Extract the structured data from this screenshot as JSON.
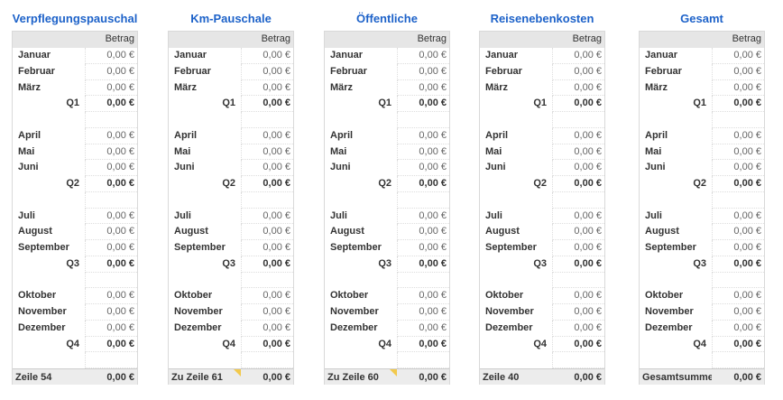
{
  "tables": [
    {
      "title": "Verpflegungspauschal",
      "header": "Betrag",
      "quarters": [
        {
          "months": [
            {
              "label": "Januar",
              "value": "0,00 €"
            },
            {
              "label": "Februar",
              "value": "0,00 €"
            },
            {
              "label": "März",
              "value": "0,00 €"
            }
          ],
          "total": {
            "label": "Q1",
            "value": "0,00 €"
          }
        },
        {
          "months": [
            {
              "label": "April",
              "value": "0,00 €"
            },
            {
              "label": "Mai",
              "value": "0,00 €"
            },
            {
              "label": "Juni",
              "value": "0,00 €"
            }
          ],
          "total": {
            "label": "Q2",
            "value": "0,00 €"
          }
        },
        {
          "months": [
            {
              "label": "Juli",
              "value": "0,00 €"
            },
            {
              "label": "August",
              "value": "0,00 €"
            },
            {
              "label": "September",
              "value": "0,00 €"
            }
          ],
          "total": {
            "label": "Q3",
            "value": "0,00 €"
          }
        },
        {
          "months": [
            {
              "label": "Oktober",
              "value": "0,00 €"
            },
            {
              "label": "November",
              "value": "0,00 €"
            },
            {
              "label": "Dezember",
              "value": "0,00 €"
            }
          ],
          "total": {
            "label": "Q4",
            "value": "0,00 €"
          }
        }
      ],
      "footer": {
        "label": "Zeile 54",
        "value": "0,00 €",
        "comment": false
      }
    },
    {
      "title": "Km-Pauschale",
      "header": "Betrag",
      "quarters": [
        {
          "months": [
            {
              "label": "Januar",
              "value": "0,00 €"
            },
            {
              "label": "Februar",
              "value": "0,00 €"
            },
            {
              "label": "März",
              "value": "0,00 €"
            }
          ],
          "total": {
            "label": "Q1",
            "value": "0,00 €"
          }
        },
        {
          "months": [
            {
              "label": "April",
              "value": "0,00 €"
            },
            {
              "label": "Mai",
              "value": "0,00 €"
            },
            {
              "label": "Juni",
              "value": "0,00 €"
            }
          ],
          "total": {
            "label": "Q2",
            "value": "0,00 €"
          }
        },
        {
          "months": [
            {
              "label": "Juli",
              "value": "0,00 €"
            },
            {
              "label": "August",
              "value": "0,00 €"
            },
            {
              "label": "September",
              "value": "0,00 €"
            }
          ],
          "total": {
            "label": "Q3",
            "value": "0,00 €"
          }
        },
        {
          "months": [
            {
              "label": "Oktober",
              "value": "0,00 €"
            },
            {
              "label": "November",
              "value": "0,00 €"
            },
            {
              "label": "Dezember",
              "value": "0,00 €"
            }
          ],
          "total": {
            "label": "Q4",
            "value": "0,00 €"
          }
        }
      ],
      "footer": {
        "label": "Zu Zeile 61",
        "value": "0,00 €",
        "comment": true
      }
    },
    {
      "title": "Öffentliche",
      "header": "Betrag",
      "quarters": [
        {
          "months": [
            {
              "label": "Januar",
              "value": "0,00 €"
            },
            {
              "label": "Februar",
              "value": "0,00 €"
            },
            {
              "label": "März",
              "value": "0,00 €"
            }
          ],
          "total": {
            "label": "Q1",
            "value": "0,00 €"
          }
        },
        {
          "months": [
            {
              "label": "April",
              "value": "0,00 €"
            },
            {
              "label": "Mai",
              "value": "0,00 €"
            },
            {
              "label": "Juni",
              "value": "0,00 €"
            }
          ],
          "total": {
            "label": "Q2",
            "value": "0,00 €"
          }
        },
        {
          "months": [
            {
              "label": "Juli",
              "value": "0,00 €"
            },
            {
              "label": "August",
              "value": "0,00 €"
            },
            {
              "label": "September",
              "value": "0,00 €"
            }
          ],
          "total": {
            "label": "Q3",
            "value": "0,00 €"
          }
        },
        {
          "months": [
            {
              "label": "Oktober",
              "value": "0,00 €"
            },
            {
              "label": "November",
              "value": "0,00 €"
            },
            {
              "label": "Dezember",
              "value": "0,00 €"
            }
          ],
          "total": {
            "label": "Q4",
            "value": "0,00 €"
          }
        }
      ],
      "footer": {
        "label": "Zu Zeile 60",
        "value": "0,00 €",
        "comment": true
      }
    },
    {
      "title": "Reisenebenkosten",
      "header": "Betrag",
      "quarters": [
        {
          "months": [
            {
              "label": "Januar",
              "value": "0,00 €"
            },
            {
              "label": "Februar",
              "value": "0,00 €"
            },
            {
              "label": "März",
              "value": "0,00 €"
            }
          ],
          "total": {
            "label": "Q1",
            "value": "0,00 €"
          }
        },
        {
          "months": [
            {
              "label": "April",
              "value": "0,00 €"
            },
            {
              "label": "Mai",
              "value": "0,00 €"
            },
            {
              "label": "Juni",
              "value": "0,00 €"
            }
          ],
          "total": {
            "label": "Q2",
            "value": "0,00 €"
          }
        },
        {
          "months": [
            {
              "label": "Juli",
              "value": "0,00 €"
            },
            {
              "label": "August",
              "value": "0,00 €"
            },
            {
              "label": "September",
              "value": "0,00 €"
            }
          ],
          "total": {
            "label": "Q3",
            "value": "0,00 €"
          }
        },
        {
          "months": [
            {
              "label": "Oktober",
              "value": "0,00 €"
            },
            {
              "label": "November",
              "value": "0,00 €"
            },
            {
              "label": "Dezember",
              "value": "0,00 €"
            }
          ],
          "total": {
            "label": "Q4",
            "value": "0,00 €"
          }
        }
      ],
      "footer": {
        "label": "Zeile 40",
        "value": "0,00 €",
        "comment": false
      }
    },
    {
      "title": "Gesamt",
      "header": "Betrag",
      "quarters": [
        {
          "months": [
            {
              "label": "Januar",
              "value": "0,00 €"
            },
            {
              "label": "Februar",
              "value": "0,00 €"
            },
            {
              "label": "März",
              "value": "0,00 €"
            }
          ],
          "total": {
            "label": "Q1",
            "value": "0,00 €"
          }
        },
        {
          "months": [
            {
              "label": "April",
              "value": "0,00 €"
            },
            {
              "label": "Mai",
              "value": "0,00 €"
            },
            {
              "label": "Juni",
              "value": "0,00 €"
            }
          ],
          "total": {
            "label": "Q2",
            "value": "0,00 €"
          }
        },
        {
          "months": [
            {
              "label": "Juli",
              "value": "0,00 €"
            },
            {
              "label": "August",
              "value": "0,00 €"
            },
            {
              "label": "September",
              "value": "0,00 €"
            }
          ],
          "total": {
            "label": "Q3",
            "value": "0,00 €"
          }
        },
        {
          "months": [
            {
              "label": "Oktober",
              "value": "0,00 €"
            },
            {
              "label": "November",
              "value": "0,00 €"
            },
            {
              "label": "Dezember",
              "value": "0,00 €"
            }
          ],
          "total": {
            "label": "Q4",
            "value": "0,00 €"
          }
        }
      ],
      "footer": {
        "label": "Gesamtsumme",
        "value": "0,00 €",
        "comment": false
      }
    }
  ]
}
